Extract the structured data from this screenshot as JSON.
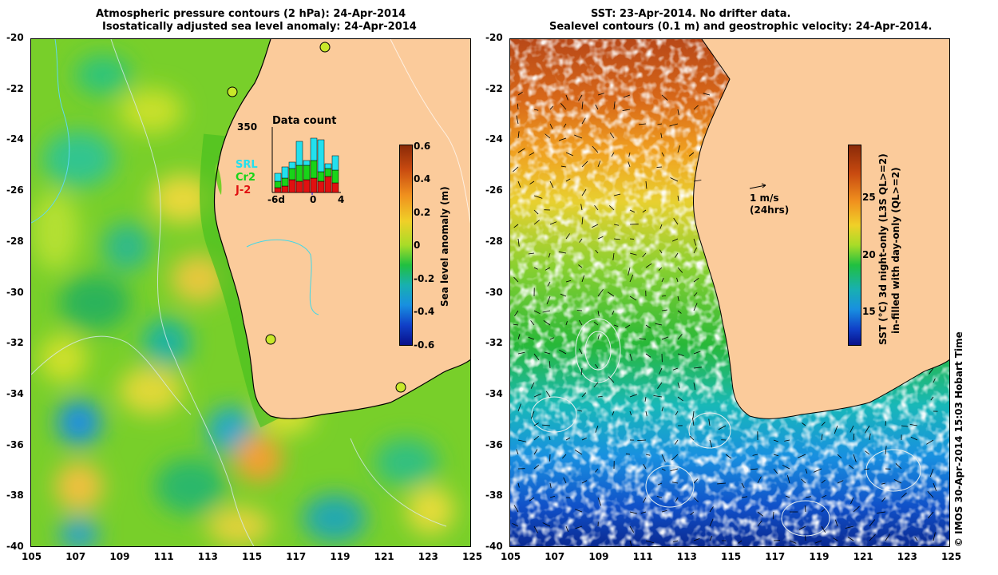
{
  "left_panel": {
    "title_line1": "Atmospheric pressure contours (2 hPa): 24-Apr-2014",
    "title_line2": "Isostatically adjusted sea level anomaly: 24-Apr-2014",
    "colorbar": {
      "label": "Sea level anomaly (m)",
      "ticks": [
        "0.6",
        "0.4",
        "0.2",
        "0",
        "-0.2",
        "-0.4",
        "-0.6"
      ]
    },
    "inset": {
      "title": "Data count",
      "ymax_label": "350",
      "x_tick_start": "-6d",
      "x_tick_mid": "0",
      "x_tick_end": "4",
      "legend": [
        {
          "label": "SRL",
          "color": "#22e0ee"
        },
        {
          "label": "Cr2",
          "color": "#18d418"
        },
        {
          "label": "J-2",
          "color": "#e01010"
        }
      ]
    }
  },
  "right_panel": {
    "title_line1": "SST: 23-Apr-2014. No drifter data.",
    "title_line2": "Sealevel contours (0.1 m) and geostrophic velocity: 24-Apr-2014.",
    "colorbar": {
      "label_line1": "SST (°C)  3d night-only (L3S QL>=2)",
      "label_line2": "in-filled with day-only (QL>=2)",
      "ticks": [
        "25",
        "20",
        "15"
      ]
    },
    "velocity_scale": {
      "line1": "1 m/s",
      "line2": "(24hrs)"
    }
  },
  "axes": {
    "y_ticks": [
      "-20",
      "-22",
      "-24",
      "-26",
      "-28",
      "-30",
      "-32",
      "-34",
      "-36",
      "-38",
      "-40"
    ],
    "x_ticks": [
      "105",
      "107",
      "109",
      "111",
      "113",
      "115",
      "117",
      "119",
      "121",
      "123",
      "125"
    ]
  },
  "copyright": "© IMOS 30-Apr-2014 15:03 Hobart Time",
  "colors": {
    "land": "#fbcb9b",
    "sla_base": "#7fd22a",
    "coast": "#000000"
  }
}
